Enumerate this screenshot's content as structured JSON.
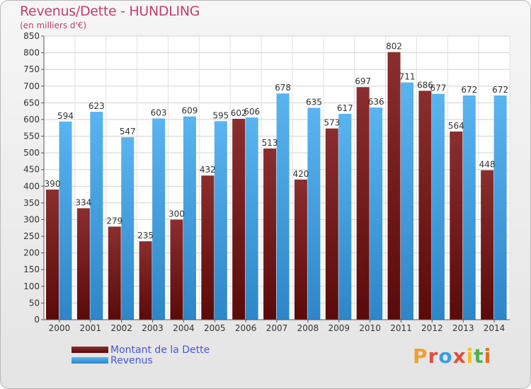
{
  "header": {
    "title": "Revenus/Dette - HUNDLING",
    "subtitle": "(en milliers d'€)"
  },
  "legend": {
    "items": [
      {
        "label": "Montant de la Dette",
        "color": "#7a1e1e"
      },
      {
        "label": "Revenus",
        "color": "#4da6e8"
      }
    ]
  },
  "logo": {
    "letters": [
      "P",
      "r",
      "o",
      "x",
      "i",
      "t",
      "i"
    ],
    "colors": [
      "#f0a030",
      "#e05040",
      "#3aa0e0",
      "#e05040",
      "#f0c020",
      "#50b050",
      "#e07020"
    ]
  },
  "chart_data": {
    "type": "bar",
    "categories": [
      "2000",
      "2001",
      "2002",
      "2003",
      "2004",
      "2005",
      "2006",
      "2007",
      "2008",
      "2009",
      "2010",
      "2011",
      "2012",
      "2013",
      "2014"
    ],
    "series": [
      {
        "name": "Montant de la Dette",
        "color": "#7a1e1e",
        "values": [
          390,
          334,
          279,
          235,
          300,
          432,
          602,
          513,
          420,
          573,
          697,
          802,
          686,
          564,
          448
        ]
      },
      {
        "name": "Revenus",
        "color": "#4da6e8",
        "values": [
          594,
          623,
          547,
          603,
          609,
          595,
          606,
          678,
          635,
          617,
          636,
          711,
          677,
          672,
          672
        ]
      }
    ],
    "ylim": [
      0,
      850
    ],
    "yticks": [
      0,
      50,
      100,
      150,
      200,
      250,
      300,
      350,
      400,
      450,
      500,
      550,
      600,
      650,
      700,
      750,
      800,
      850
    ],
    "grid": true,
    "legend_position": "bottom-left"
  }
}
